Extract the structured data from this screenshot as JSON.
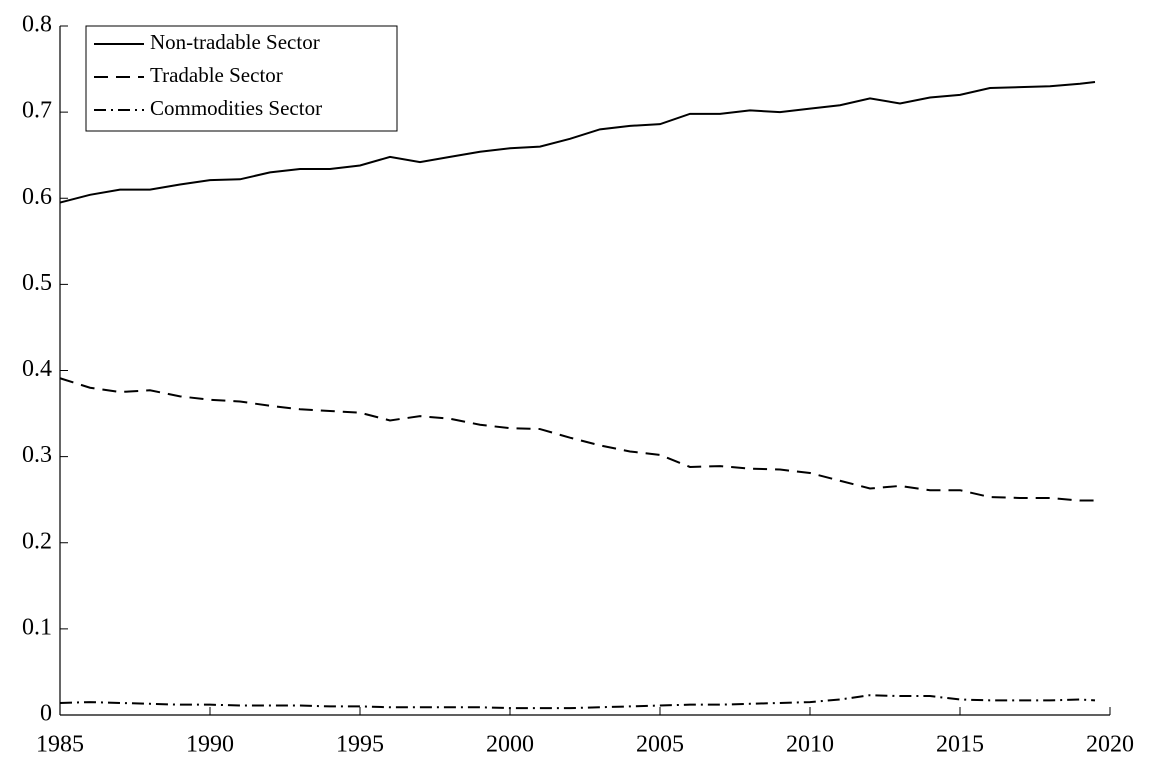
{
  "chart_data": {
    "type": "line",
    "x": [
      1985,
      1986,
      1987,
      1988,
      1989,
      1990,
      1991,
      1992,
      1993,
      1994,
      1995,
      1996,
      1997,
      1998,
      1999,
      2000,
      2001,
      2002,
      2003,
      2004,
      2005,
      2006,
      2007,
      2008,
      2009,
      2010,
      2011,
      2012,
      2013,
      2014,
      2015,
      2016,
      2017,
      2018,
      2019,
      2019.5
    ],
    "series": [
      {
        "name": "Non-tradable Sector",
        "color": "#000000",
        "line_style": "solid",
        "values": [
          0.595,
          0.604,
          0.61,
          0.61,
          0.616,
          0.621,
          0.622,
          0.63,
          0.634,
          0.634,
          0.638,
          0.648,
          0.642,
          0.648,
          0.654,
          0.658,
          0.66,
          0.669,
          0.68,
          0.684,
          0.686,
          0.698,
          0.698,
          0.702,
          0.7,
          0.704,
          0.708,
          0.716,
          0.71,
          0.717,
          0.72,
          0.728,
          0.729,
          0.73,
          0.733,
          0.735
        ]
      },
      {
        "name": "Tradable Sector",
        "color": "#000000",
        "line_style": "dashed",
        "values": [
          0.391,
          0.38,
          0.375,
          0.377,
          0.37,
          0.366,
          0.364,
          0.359,
          0.355,
          0.353,
          0.351,
          0.342,
          0.347,
          0.344,
          0.337,
          0.333,
          0.332,
          0.322,
          0.313,
          0.306,
          0.302,
          0.288,
          0.289,
          0.286,
          0.285,
          0.281,
          0.272,
          0.263,
          0.266,
          0.261,
          0.261,
          0.253,
          0.252,
          0.252,
          0.249,
          0.249
        ]
      },
      {
        "name": "Commodities Sector",
        "color": "#000000",
        "line_style": "dashdot",
        "values": [
          0.014,
          0.015,
          0.014,
          0.013,
          0.012,
          0.012,
          0.011,
          0.011,
          0.011,
          0.01,
          0.01,
          0.009,
          0.009,
          0.009,
          0.009,
          0.008,
          0.008,
          0.008,
          0.009,
          0.01,
          0.011,
          0.012,
          0.012,
          0.013,
          0.014,
          0.015,
          0.018,
          0.023,
          0.022,
          0.022,
          0.018,
          0.017,
          0.017,
          0.017,
          0.018,
          0.017
        ]
      }
    ],
    "xlim": [
      1985,
      2020
    ],
    "xticks": [
      1985,
      1990,
      1995,
      2000,
      2005,
      2010,
      2015,
      2020
    ],
    "ylim": [
      0,
      0.8
    ],
    "yticks": [
      0,
      0.1,
      0.2,
      0.3,
      0.4,
      0.5,
      0.6,
      0.7,
      0.8
    ],
    "grid": false,
    "legend": "upper left"
  }
}
